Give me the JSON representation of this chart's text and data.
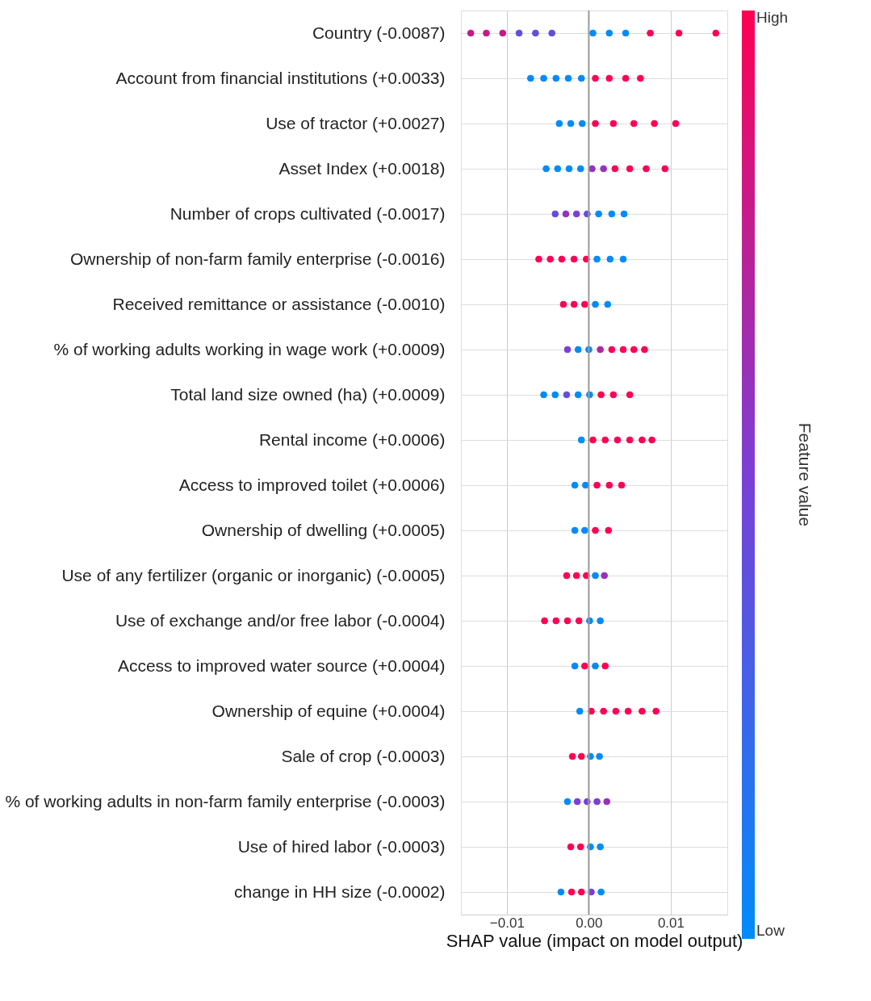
{
  "chart_data": {
    "type": "scatter",
    "orientation": "horizontal",
    "xlabel": "SHAP value (impact on model output)",
    "clabel": "Feature value",
    "categories": [
      "Country (-0.0087)",
      "Account from financial institutions (+0.0033)",
      "Use of tractor (+0.0027)",
      "Asset Index (+0.0018)",
      "Number of crops cultivated (-0.0017)",
      "Ownership of non-farm family enterprise (-0.0016)",
      "Received remittance or assistance (-0.0010)",
      "% of working adults working in wage work (+0.0009)",
      "Total land size owned (ha) (+0.0009)",
      "Rental income (+0.0006)",
      "Access to improved toilet (+0.0006)",
      "Ownership of dwelling (+0.0005)",
      "Use of any fertilizer (organic or inorganic) (-0.0005)",
      "Use of exchange and/or free labor (-0.0004)",
      "Access to improved water source (+0.0004)",
      "Ownership of equine (+0.0004)",
      "Sale of crop (-0.0003)",
      "% of working adults in non-farm family enterprise (-0.0003)",
      "Use of hired labor (-0.0003)",
      "change in HH size (-0.0002)"
    ],
    "series": [
      {
        "values": [
          -0.0144,
          -0.0071,
          -0.0036,
          -0.0052,
          -0.0041,
          -0.0061,
          -0.0031,
          -0.0026,
          -0.0055,
          -0.0009,
          -0.0017,
          -0.0017,
          -0.0027,
          -0.0054,
          -0.0017,
          -0.0011,
          -0.002,
          -0.0026,
          -0.0022,
          -0.0034
        ],
        "cvalues": [
          0.8,
          0,
          0,
          0,
          0.4,
          1,
          1,
          0.5,
          0,
          0,
          0,
          0,
          1,
          1,
          0,
          0,
          1,
          0,
          1,
          0
        ],
        "colors": [
          "#ca1987",
          "#008bfb",
          "#008bfb",
          "#008bfb",
          "#624edd",
          "#ff0052",
          "#ff0052",
          "#7b3fd6",
          "#008bfb",
          "#008bfb",
          "#008bfb",
          "#008bfb",
          "#ff0052",
          "#ff0052",
          "#008bfb",
          "#008bfb",
          "#ff0052",
          "#008bfb",
          "#ff0052",
          "#008bfb"
        ]
      },
      {
        "values": [
          -0.0125,
          -0.0055,
          -0.0022,
          -0.0038,
          -0.0028,
          -0.0047,
          -0.0018,
          -0.0013,
          -0.0041,
          0.0005,
          -0.0004,
          -0.0005,
          -0.0015,
          -0.004,
          -0.0005,
          0.0003,
          -0.0009,
          -0.0014,
          -0.001,
          -0.0021
        ],
        "cvalues": [
          0.8,
          0,
          0,
          0,
          0.6,
          1,
          1,
          0,
          0,
          1,
          0,
          0,
          1,
          1,
          1,
          1,
          1,
          0.5,
          1,
          1
        ],
        "colors": [
          "#ca1987",
          "#008bfb",
          "#008bfb",
          "#008bfb",
          "#9532bc",
          "#ff0052",
          "#ff0052",
          "#008bfb",
          "#008bfb",
          "#ff0052",
          "#008bfb",
          "#008bfb",
          "#ff0052",
          "#ff0052",
          "#ff0052",
          "#ff0052",
          "#ff0052",
          "#7b3fd6",
          "#ff0052",
          "#ff0052"
        ]
      },
      {
        "values": [
          -0.0105,
          -0.004,
          -0.0008,
          -0.0024,
          -0.0015,
          -0.0033,
          -0.0005,
          0.0,
          -0.0027,
          0.002,
          0.001,
          0.0008,
          -0.0003,
          -0.0026,
          0.0008,
          0.0018,
          0.0002,
          -0.0002,
          0.0002,
          -0.0009
        ],
        "cvalues": [
          0.8,
          0,
          0,
          0,
          0.5,
          1,
          1,
          0,
          0.4,
          1,
          1,
          1,
          1,
          1,
          0,
          1,
          0,
          0.5,
          0,
          1
        ],
        "colors": [
          "#ca1987",
          "#008bfb",
          "#008bfb",
          "#008bfb",
          "#7b3fd6",
          "#ff0052",
          "#ff0052",
          "#008bfb",
          "#624edd",
          "#ff0052",
          "#ff0052",
          "#ff0052",
          "#ff0052",
          "#ff0052",
          "#008bfb",
          "#ff0052",
          "#008bfb",
          "#7b3fd6",
          "#008bfb",
          "#ff0052"
        ]
      },
      {
        "values": [
          -0.0085,
          -0.0025,
          0.0008,
          -0.001,
          -0.0002,
          -0.0018,
          0.0008,
          0.0014,
          -0.0013,
          0.0035,
          0.0025,
          0.0024,
          0.0008,
          -0.0012,
          0.002,
          0.0033,
          0.0013,
          0.001,
          0.0014,
          0.0003
        ],
        "cvalues": [
          0.4,
          0,
          1,
          0,
          0.4,
          1,
          0,
          0.7,
          0,
          1,
          1,
          1,
          0,
          1,
          1,
          1,
          0,
          0.5,
          0,
          0.5
        ],
        "colors": [
          "#624edd",
          "#008bfb",
          "#ff0052",
          "#008bfb",
          "#624edd",
          "#ff0052",
          "#008bfb",
          "#b026a1",
          "#008bfb",
          "#ff0052",
          "#ff0052",
          "#ff0052",
          "#008bfb",
          "#ff0052",
          "#ff0052",
          "#ff0052",
          "#008bfb",
          "#7b3fd6",
          "#008bfb",
          "#7b3fd6"
        ]
      },
      {
        "values": [
          -0.0065,
          -0.0009,
          0.003,
          0.0004,
          0.0012,
          -0.0003,
          0.0023,
          0.0028,
          0.0001,
          0.005,
          0.004,
          null,
          0.0019,
          0.0001,
          null,
          0.0048,
          null,
          0.0022,
          null,
          0.0015
        ],
        "cvalues": [
          0.4,
          0,
          1,
          0.6,
          0,
          1,
          0,
          1,
          0,
          1,
          1,
          null,
          0.6,
          0,
          null,
          1,
          null,
          0.6,
          null,
          0
        ],
        "colors": [
          "#624edd",
          "#008bfb",
          "#ff0052",
          "#9532bc",
          "#008bfb",
          "#ff0052",
          "#008bfb",
          "#ff0052",
          "#008bfb",
          "#ff0052",
          "#ff0052",
          null,
          "#9532bc",
          "#008bfb",
          null,
          "#ff0052",
          null,
          "#9532bc",
          null,
          "#008bfb"
        ]
      },
      {
        "values": [
          -0.0045,
          0.0008,
          0.0055,
          0.0018,
          0.0028,
          0.001,
          null,
          0.0042,
          0.0015,
          0.0065,
          null,
          null,
          null,
          0.0014,
          null,
          0.0065,
          null,
          null,
          null,
          null
        ],
        "cvalues": [
          0.4,
          1,
          1,
          0.6,
          0,
          0,
          null,
          1,
          1,
          1,
          null,
          null,
          null,
          0,
          null,
          1,
          null,
          null,
          null,
          null
        ],
        "colors": [
          "#624edd",
          "#ff0052",
          "#ff0052",
          "#9532bc",
          "#008bfb",
          "#008bfb",
          null,
          "#ff0052",
          "#ff0052",
          "#ff0052",
          null,
          null,
          null,
          "#008bfb",
          null,
          "#ff0052",
          null,
          null,
          null,
          null
        ]
      },
      {
        "values": [
          0.0005,
          0.0025,
          0.008,
          0.0032,
          0.0043,
          0.0026,
          null,
          0.0055,
          0.003,
          0.0077,
          null,
          null,
          null,
          null,
          null,
          0.0082,
          null,
          null,
          null,
          null
        ],
        "cvalues": [
          0,
          1,
          1,
          1,
          0,
          0,
          null,
          1,
          1,
          1,
          null,
          null,
          null,
          null,
          null,
          1,
          null,
          null,
          null,
          null
        ],
        "colors": [
          "#008bfb",
          "#ff0052",
          "#ff0052",
          "#ff0052",
          "#008bfb",
          "#008bfb",
          null,
          "#ff0052",
          "#ff0052",
          "#ff0052",
          null,
          null,
          null,
          null,
          null,
          "#ff0052",
          null,
          null,
          null,
          null
        ]
      },
      {
        "values": [
          0.0025,
          0.0045,
          0.0106,
          0.005,
          null,
          0.0042,
          null,
          0.0068,
          0.005,
          null,
          null,
          null,
          null,
          null,
          null,
          null,
          null,
          null,
          null,
          null
        ],
        "cvalues": [
          0,
          1,
          1,
          1,
          null,
          0,
          null,
          1,
          1,
          null,
          null,
          null,
          null,
          null,
          null,
          null,
          null,
          null,
          null,
          null
        ],
        "colors": [
          "#008bfb",
          "#ff0052",
          "#ff0052",
          "#ff0052",
          null,
          "#008bfb",
          null,
          "#ff0052",
          "#ff0052",
          null,
          null,
          null,
          null,
          null,
          null,
          null,
          null,
          null,
          null,
          null
        ]
      },
      {
        "values": [
          0.0045,
          0.0063,
          null,
          0.007,
          null,
          null,
          null,
          null,
          null,
          null,
          null,
          null,
          null,
          null,
          null,
          null,
          null,
          null,
          null,
          null
        ],
        "cvalues": [
          0,
          1,
          null,
          1,
          null,
          null,
          null,
          null,
          null,
          null,
          null,
          null,
          null,
          null,
          null,
          null,
          null,
          null,
          null,
          null
        ],
        "colors": [
          "#008bfb",
          "#ff0052",
          null,
          "#ff0052",
          null,
          null,
          null,
          null,
          null,
          null,
          null,
          null,
          null,
          null,
          null,
          null,
          null,
          null,
          null,
          null
        ]
      },
      {
        "values": [
          0.0075,
          null,
          null,
          0.0093,
          null,
          null,
          null,
          null,
          null,
          null,
          null,
          null,
          null,
          null,
          null,
          null,
          null,
          null,
          null,
          null
        ],
        "cvalues": [
          1,
          null,
          null,
          1,
          null,
          null,
          null,
          null,
          null,
          null,
          null,
          null,
          null,
          null,
          null,
          null,
          null,
          null,
          null,
          null
        ],
        "colors": [
          "#ff0052",
          null,
          null,
          "#ff0052",
          null,
          null,
          null,
          null,
          null,
          null,
          null,
          null,
          null,
          null,
          null,
          null,
          null,
          null,
          null,
          null
        ]
      },
      {
        "values": [
          0.011,
          null,
          null,
          null,
          null,
          null,
          null,
          null,
          null,
          null,
          null,
          null,
          null,
          null,
          null,
          null,
          null,
          null,
          null,
          null
        ],
        "cvalues": [
          1,
          null,
          null,
          null,
          null,
          null,
          null,
          null,
          null,
          null,
          null,
          null,
          null,
          null,
          null,
          null,
          null,
          null,
          null,
          null
        ],
        "colors": [
          "#ff0052",
          null,
          null,
          null,
          null,
          null,
          null,
          null,
          null,
          null,
          null,
          null,
          null,
          null,
          null,
          null,
          null,
          null,
          null,
          null
        ]
      },
      {
        "values": [
          0.0155,
          null,
          null,
          null,
          null,
          null,
          null,
          null,
          null,
          null,
          null,
          null,
          null,
          null,
          null,
          null,
          null,
          null,
          null,
          null
        ],
        "cvalues": [
          1,
          null,
          null,
          null,
          null,
          null,
          null,
          null,
          null,
          null,
          null,
          null,
          null,
          null,
          null,
          null,
          null,
          null,
          null,
          null
        ],
        "colors": [
          "#ff0052",
          null,
          null,
          null,
          null,
          null,
          null,
          null,
          null,
          null,
          null,
          null,
          null,
          null,
          null,
          null,
          null,
          null,
          null,
          null
        ]
      }
    ],
    "xlim": [
      -0.0156,
      0.0169
    ],
    "xticks": [
      {
        "value": -0.01,
        "label": "−0.01"
      },
      {
        "value": 0,
        "label": "0.00"
      },
      {
        "value": 0.01,
        "label": "0.01"
      }
    ],
    "clim": [
      0,
      1
    ],
    "cticks": [
      {
        "value": 0,
        "label": "Low"
      },
      {
        "value": 1,
        "label": "High"
      }
    ],
    "ref_lines": [
      {
        "axis": "x",
        "value": 0,
        "color": "#999999"
      }
    ],
    "grid": true,
    "marker": "circle"
  }
}
